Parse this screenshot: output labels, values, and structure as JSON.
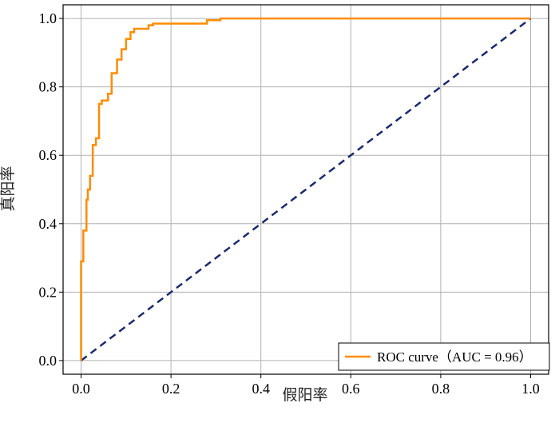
{
  "chart_data": {
    "type": "line",
    "xlabel": "假阳率",
    "ylabel": "真阳率",
    "xlim": [
      -0.04,
      1.04
    ],
    "ylim": [
      -0.04,
      1.04
    ],
    "x_ticks": [
      "0.0",
      "0.2",
      "0.4",
      "0.6",
      "0.8",
      "1.0"
    ],
    "y_ticks": [
      "0.0",
      "0.2",
      "0.4",
      "0.6",
      "0.8",
      "1.0"
    ],
    "grid": true,
    "legend_position": "lower-right",
    "series": [
      {
        "name": "ROC curve（AUC = 0.96）",
        "color": "#ff8c00",
        "style": "solid",
        "x": [
          0.0,
          0.0,
          0.005,
          0.005,
          0.012,
          0.012,
          0.015,
          0.015,
          0.02,
          0.02,
          0.026,
          0.026,
          0.033,
          0.033,
          0.04,
          0.04,
          0.046,
          0.046,
          0.06,
          0.06,
          0.068,
          0.068,
          0.08,
          0.08,
          0.09,
          0.09,
          0.1,
          0.1,
          0.11,
          0.11,
          0.118,
          0.118,
          0.15,
          0.15,
          0.16,
          0.16,
          0.28,
          0.28,
          0.31,
          0.31,
          1.0
        ],
        "y": [
          0.0,
          0.29,
          0.29,
          0.38,
          0.38,
          0.47,
          0.47,
          0.5,
          0.5,
          0.54,
          0.54,
          0.63,
          0.63,
          0.65,
          0.65,
          0.75,
          0.75,
          0.76,
          0.76,
          0.78,
          0.78,
          0.84,
          0.84,
          0.88,
          0.88,
          0.91,
          0.91,
          0.94,
          0.94,
          0.96,
          0.96,
          0.97,
          0.97,
          0.98,
          0.98,
          0.985,
          0.985,
          0.995,
          0.995,
          1.0,
          1.0
        ]
      },
      {
        "name": "",
        "color": "#1a2a6c",
        "style": "dashed",
        "x": [
          0.0,
          1.0
        ],
        "y": [
          0.0,
          1.0
        ]
      }
    ],
    "legend": [
      {
        "label": "ROC curve（AUC = 0.96）",
        "color": "#ff8c00"
      }
    ]
  }
}
